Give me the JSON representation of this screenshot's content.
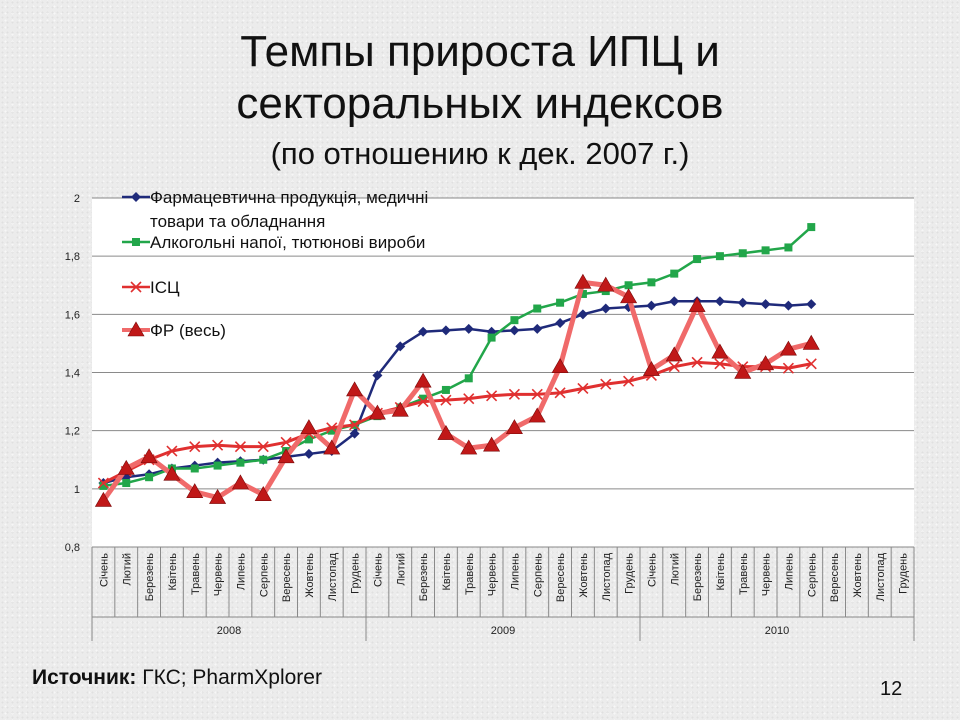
{
  "slide": {
    "title_line1": "Темпы прироста ИПЦ и",
    "title_line2": "секторальных индексов",
    "subtitle": "(по отношению к дек. 2007 г.)",
    "source_label": "Источник:",
    "source_text": " ГКС; PharmXplorer",
    "page_number": "12"
  },
  "chart_data": {
    "type": "line",
    "title": "",
    "xlabel": "",
    "ylabel": "",
    "ylim": [
      0.8,
      2
    ],
    "yticks": [
      "0,8",
      "1",
      "1,2",
      "1,4",
      "1,6",
      "1,8",
      "2"
    ],
    "grid": true,
    "legend_position": "top-left",
    "categories": [
      "Січень",
      "Лютий",
      "Березень",
      "Квітень",
      "Травень",
      "Червень",
      "Липень",
      "Серпень",
      "Вересень",
      "Жовтень",
      "Листопад",
      "Грудень",
      "Січень",
      "Лютий",
      "Березень",
      "Квітень",
      "Травень",
      "Червень",
      "Липень",
      "Серпень",
      "Вересень",
      "Жовтень",
      "Листопад",
      "Грудень",
      "Січень",
      "Лютий",
      "Березень",
      "Квітень",
      "Травень",
      "Червень",
      "Липень",
      "Серпень",
      "Вересень",
      "Жовтень",
      "Листопад",
      "Грудень"
    ],
    "year_groups": [
      {
        "label": "2008",
        "count": 12
      },
      {
        "label": "2009",
        "count": 12
      },
      {
        "label": "2010",
        "count": 12
      }
    ],
    "series": [
      {
        "name": "Фармацевтична продукція, медичні товари та обладнання",
        "legend_lines": [
          "Фармацевтична продукція, медичні",
          "товари та обладнання"
        ],
        "color": "#1f2a7a",
        "marker": "diamond",
        "values": [
          1.02,
          1.04,
          1.05,
          1.07,
          1.08,
          1.09,
          1.095,
          1.1,
          1.11,
          1.12,
          1.13,
          1.19,
          1.39,
          1.49,
          1.54,
          1.545,
          1.55,
          1.54,
          1.545,
          1.55,
          1.57,
          1.6,
          1.62,
          1.625,
          1.63,
          1.645,
          1.645,
          1.645,
          1.64,
          1.635,
          1.63,
          1.635,
          null,
          null,
          null,
          null
        ]
      },
      {
        "name": "Алкогольні напої, тютюнові вироби",
        "legend_lines": [
          "Алкогольні напої, тютюнові вироби"
        ],
        "color": "#22a64a",
        "marker": "square",
        "values": [
          1.01,
          1.02,
          1.04,
          1.07,
          1.07,
          1.08,
          1.09,
          1.1,
          1.13,
          1.17,
          1.2,
          1.22,
          1.25,
          1.28,
          1.31,
          1.34,
          1.38,
          1.52,
          1.58,
          1.62,
          1.64,
          1.67,
          1.68,
          1.7,
          1.71,
          1.74,
          1.79,
          1.8,
          1.81,
          1.82,
          1.83,
          1.9,
          null,
          null,
          null,
          null
        ]
      },
      {
        "name": "ІСЦ",
        "legend_lines": [
          "ІСЦ"
        ],
        "color": "#e03030",
        "marker": "x",
        "values": [
          1.02,
          1.06,
          1.1,
          1.13,
          1.145,
          1.15,
          1.145,
          1.145,
          1.16,
          1.19,
          1.21,
          1.22,
          1.26,
          1.28,
          1.3,
          1.305,
          1.31,
          1.32,
          1.325,
          1.325,
          1.33,
          1.345,
          1.36,
          1.37,
          1.39,
          1.42,
          1.435,
          1.43,
          1.42,
          1.42,
          1.415,
          1.43,
          null,
          null,
          null,
          null
        ]
      },
      {
        "name": "ФР (весь)",
        "legend_lines": [
          "ФР (весь)"
        ],
        "color": "#f06a6a",
        "marker": "triangle",
        "values": [
          0.96,
          1.07,
          1.11,
          1.05,
          0.99,
          0.97,
          1.02,
          0.98,
          1.11,
          1.21,
          1.14,
          1.34,
          1.26,
          1.27,
          1.37,
          1.19,
          1.14,
          1.15,
          1.21,
          1.25,
          1.42,
          1.71,
          1.7,
          1.66,
          1.41,
          1.46,
          1.63,
          1.47,
          1.4,
          1.43,
          1.48,
          1.5,
          null,
          null,
          null,
          null
        ]
      }
    ]
  }
}
